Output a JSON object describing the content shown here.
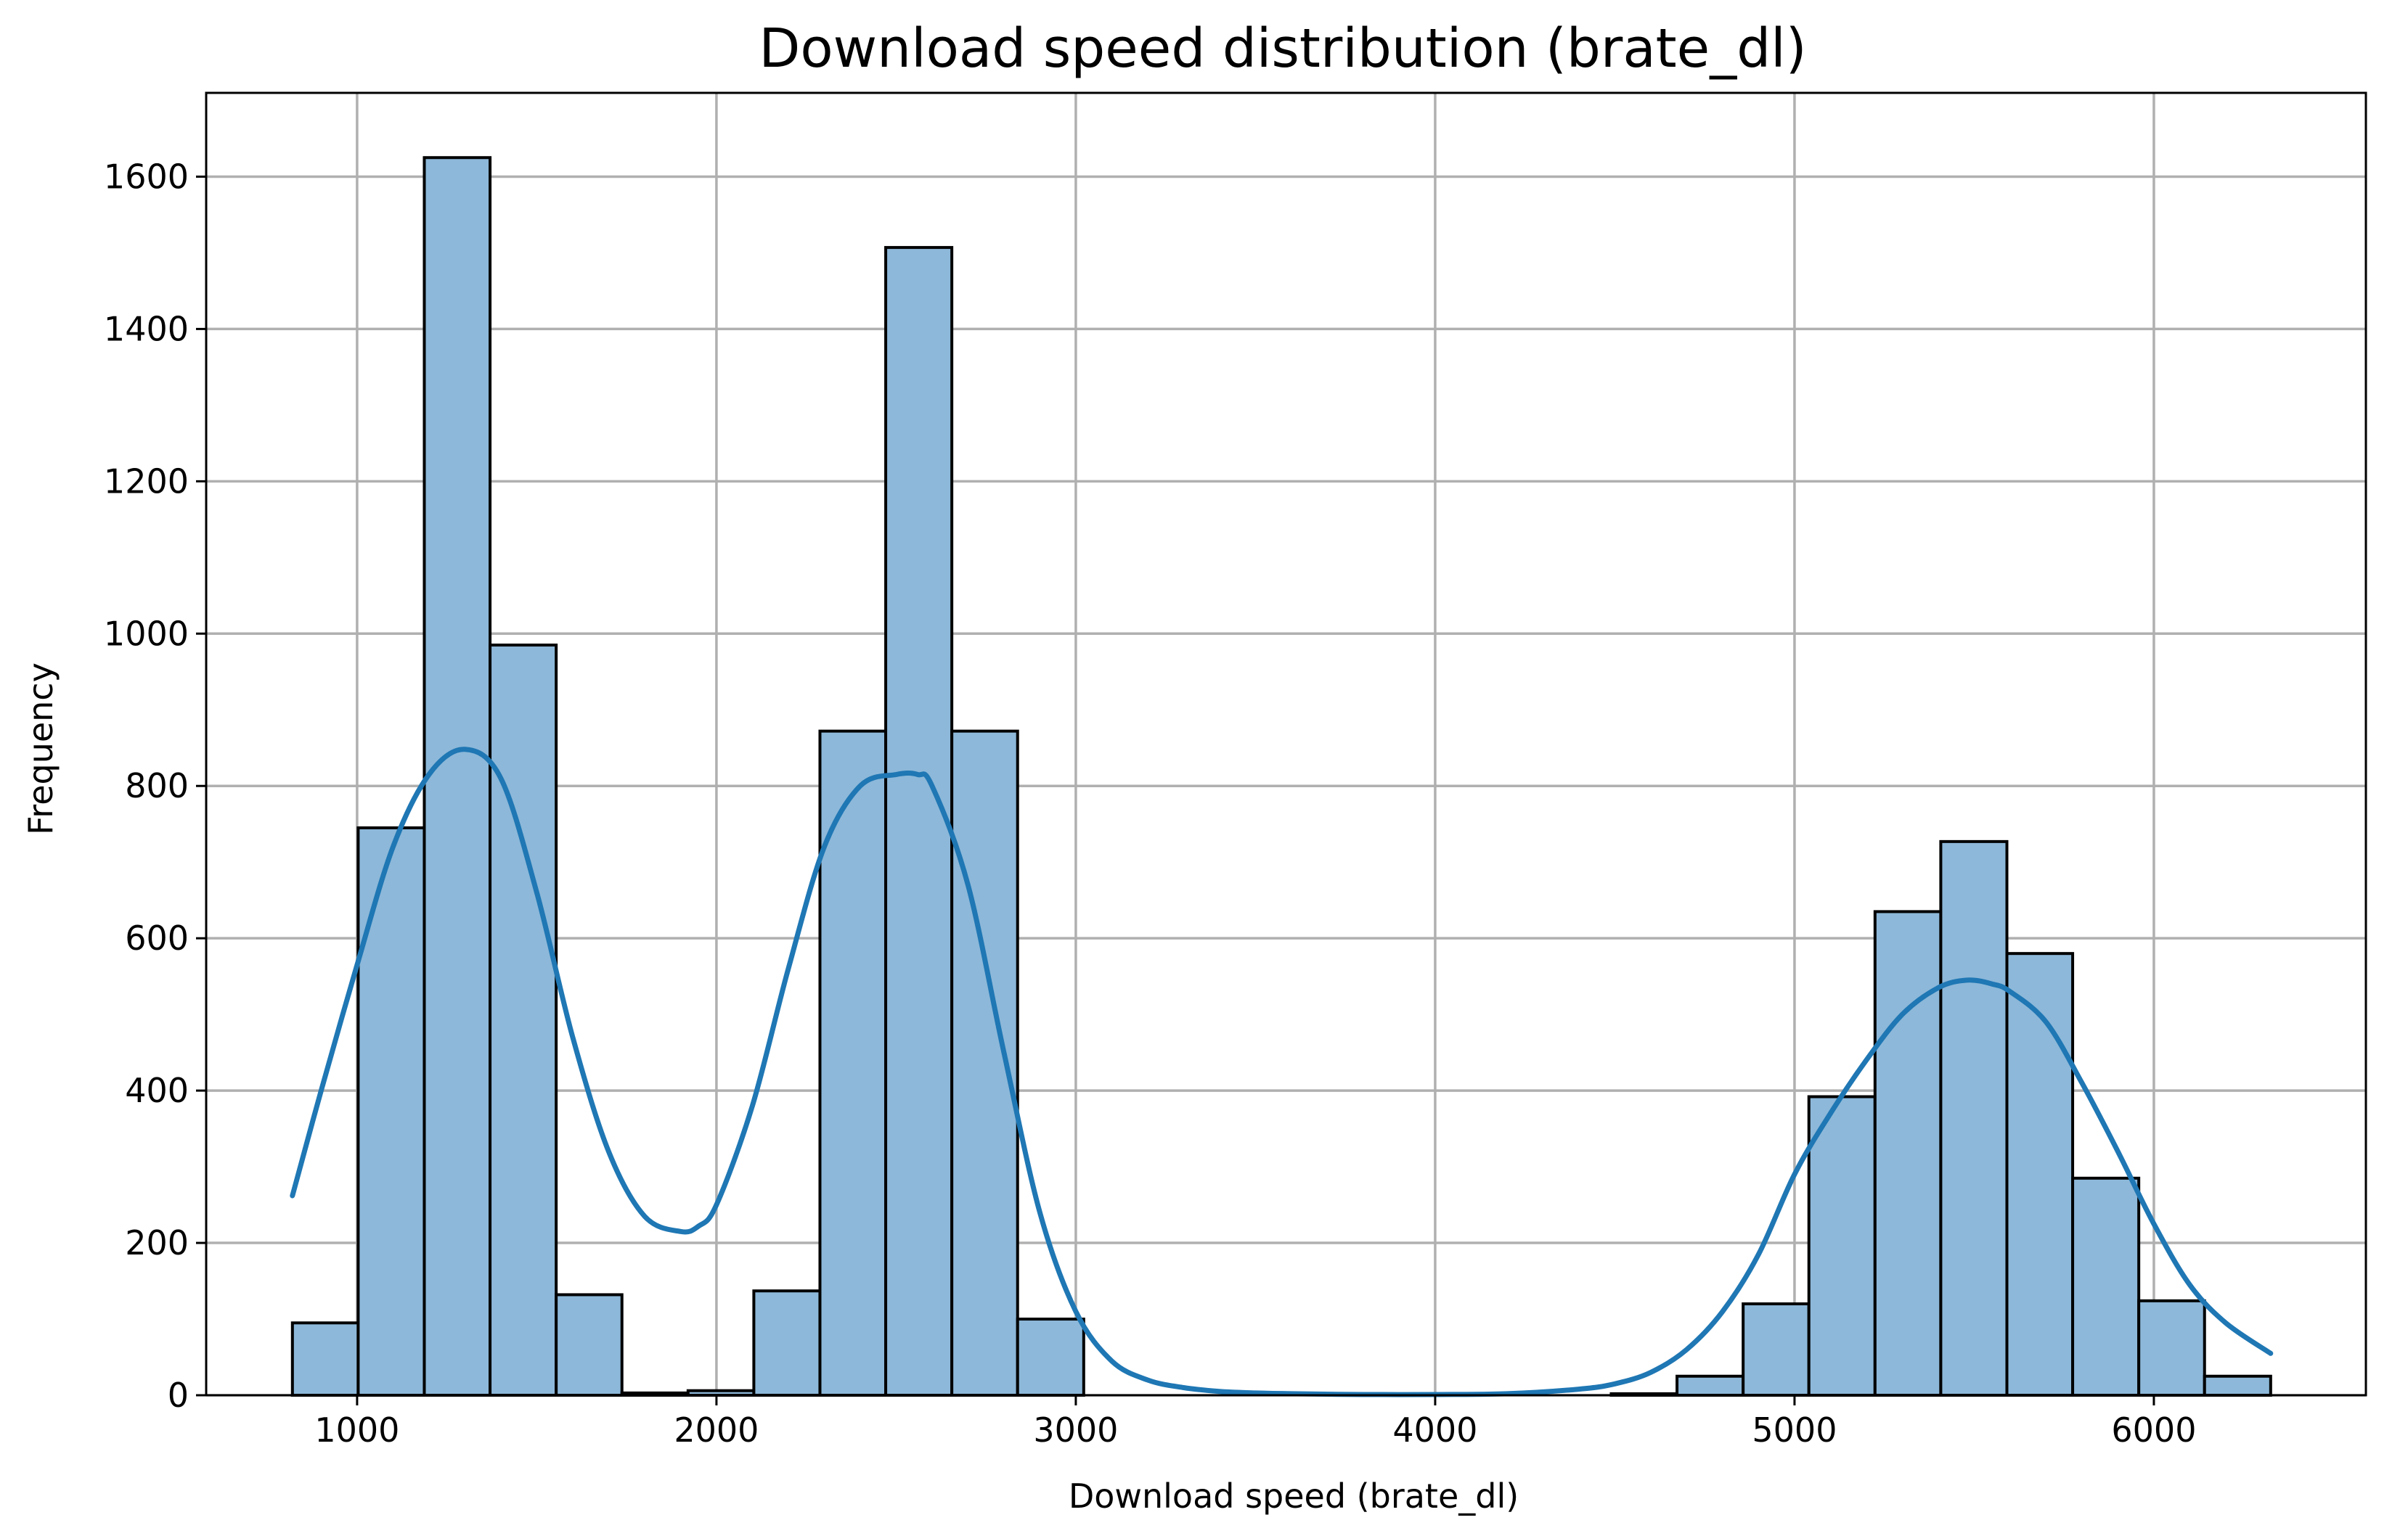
{
  "chart_data": {
    "type": "bar",
    "subtype": "histogram-with-kde",
    "title": "Download speed distribution (brate_dl)",
    "xlabel": "Download speed (brate_dl)",
    "ylabel": "Frequency",
    "xlim": [
      580,
      6590
    ],
    "ylim": [
      0,
      1710
    ],
    "x_ticks": [
      1000,
      2000,
      3000,
      4000,
      5000,
      6000
    ],
    "y_ticks": [
      0,
      200,
      400,
      600,
      800,
      1000,
      1200,
      1400,
      1600
    ],
    "grid": true,
    "bar_color": "#8db8d9",
    "bar_edge_color": "#000000",
    "kde_color": "#1f77b4",
    "bins": [
      {
        "x0": 820,
        "x1": 1003,
        "count": 95
      },
      {
        "x0": 1003,
        "x1": 1187,
        "count": 745
      },
      {
        "x0": 1187,
        "x1": 1370,
        "count": 1625
      },
      {
        "x0": 1370,
        "x1": 1554,
        "count": 985
      },
      {
        "x0": 1554,
        "x1": 1737,
        "count": 132
      },
      {
        "x0": 1737,
        "x1": 1921,
        "count": 3
      },
      {
        "x0": 1921,
        "x1": 2104,
        "count": 6
      },
      {
        "x0": 2104,
        "x1": 2288,
        "count": 137
      },
      {
        "x0": 2288,
        "x1": 2471,
        "count": 872
      },
      {
        "x0": 2471,
        "x1": 2655,
        "count": 1507
      },
      {
        "x0": 2655,
        "x1": 2838,
        "count": 872
      },
      {
        "x0": 2838,
        "x1": 3022,
        "count": 100
      },
      {
        "x0": 3022,
        "x1": 3205,
        "count": 0
      },
      {
        "x0": 3205,
        "x1": 3389,
        "count": 0
      },
      {
        "x0": 3389,
        "x1": 3572,
        "count": 0
      },
      {
        "x0": 3572,
        "x1": 3756,
        "count": 0
      },
      {
        "x0": 3756,
        "x1": 3939,
        "count": 0
      },
      {
        "x0": 3939,
        "x1": 4123,
        "count": 0
      },
      {
        "x0": 4123,
        "x1": 4306,
        "count": 0
      },
      {
        "x0": 4306,
        "x1": 4490,
        "count": 0
      },
      {
        "x0": 4490,
        "x1": 4673,
        "count": 2
      },
      {
        "x0": 4673,
        "x1": 4857,
        "count": 25
      },
      {
        "x0": 4857,
        "x1": 5040,
        "count": 120
      },
      {
        "x0": 5040,
        "x1": 5224,
        "count": 392
      },
      {
        "x0": 5224,
        "x1": 5407,
        "count": 635
      },
      {
        "x0": 5407,
        "x1": 5591,
        "count": 727
      },
      {
        "x0": 5591,
        "x1": 5774,
        "count": 580
      },
      {
        "x0": 5774,
        "x1": 5958,
        "count": 285
      },
      {
        "x0": 5958,
        "x1": 6141,
        "count": 124
      },
      {
        "x0": 6141,
        "x1": 6325,
        "count": 25
      }
    ],
    "kde": {
      "x": [
        820,
        900,
        1000,
        1100,
        1200,
        1300,
        1400,
        1500,
        1600,
        1700,
        1800,
        1900,
        1950,
        2000,
        2100,
        2200,
        2300,
        2400,
        2500,
        2560,
        2600,
        2700,
        2800,
        2900,
        3000,
        3100,
        3200,
        3300,
        3400,
        3500,
        3600,
        3800,
        4000,
        4200,
        4400,
        4500,
        4600,
        4700,
        4800,
        4900,
        5000,
        5100,
        5200,
        5300,
        5400,
        5480,
        5550,
        5600,
        5700,
        5800,
        5900,
        6000,
        6100,
        6200,
        6325
      ],
      "y": [
        262,
        400,
        565,
        720,
        815,
        848,
        810,
        660,
        470,
        320,
        235,
        215,
        222,
        250,
        380,
        560,
        720,
        800,
        815,
        815,
        800,
        670,
        450,
        240,
        110,
        45,
        20,
        10,
        5,
        3,
        2,
        1,
        1,
        2,
        8,
        15,
        30,
        60,
        110,
        185,
        290,
        370,
        440,
        500,
        535,
        545,
        540,
        530,
        490,
        410,
        320,
        225,
        145,
        95,
        55
      ]
    }
  }
}
